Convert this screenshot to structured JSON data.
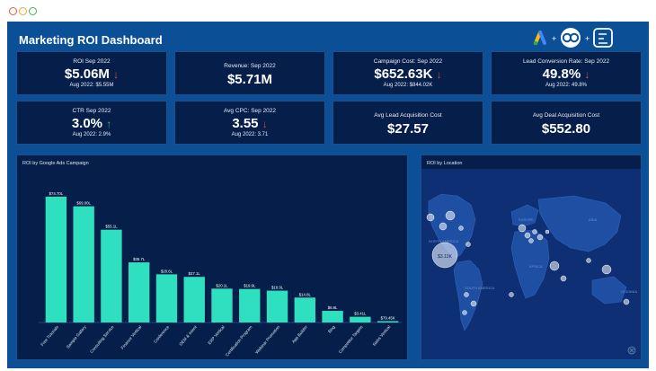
{
  "title": "Marketing ROI Dashboard",
  "window_controls": [
    "close",
    "minimize",
    "maximize"
  ],
  "logo_icons": [
    "google-ads-icon",
    "plus",
    "creative-cloud-icon",
    "plus",
    "zoho-analytics-icon"
  ],
  "kpis": [
    {
      "label": "ROI Sep 2022",
      "value": "$5.06M",
      "trend": "down",
      "sub": "Aug 2022: $5.55M"
    },
    {
      "label": "Revenue: Sep 2022",
      "value": "$5.71M",
      "trend": "",
      "sub": ""
    },
    {
      "label": "Campaign Cost: Sep 2022",
      "value": "$652.63K",
      "trend": "down",
      "sub": "Aug 2022: $844.02K"
    },
    {
      "label": "Lead Conversion Rate: Sep 2022",
      "value": "49.8%",
      "trend": "down",
      "sub": "Aug 2022: 49.8%"
    },
    {
      "label": "CTR Sep 2022",
      "value": "3.0%",
      "trend": "up",
      "sub": "Aug 2022: 2.9%"
    },
    {
      "label": "Avg CPC: Sep 2022",
      "value": "3.55",
      "trend": "down",
      "sub": "Aug 2022: 3.71"
    },
    {
      "label": "Avg Lead Acquisition Cost",
      "value": "$27.57",
      "trend": "",
      "sub": ""
    },
    {
      "label": "Avg Deal Acquisition Cost",
      "value": "$552.80",
      "trend": "",
      "sub": ""
    }
  ],
  "chart_panel_title": "ROI by Google Ads Campaign",
  "map_panel_title": "ROI by Location",
  "map_labels": [
    "NORTH AMERICA",
    "EUROPE",
    "ASIA",
    "AFRICA",
    "SOUTH AMERICA",
    "OCEANIA"
  ],
  "map_bubble_label": "$3.13K",
  "chart_data": {
    "type": "bar",
    "categories": [
      "Free Tutorials",
      "Sample Gallery",
      "Consulting Service",
      "Finance Vertical",
      "Conference",
      "OEM & Intent",
      "ERP Vertical",
      "Certification Program",
      "Webinar Promotion",
      "App Builder",
      "Blog",
      "Competitor Targets",
      "Sales Vertical"
    ],
    "values": [
      74.7,
      69.0,
      55.1,
      35.7,
      28.6,
      27.1,
      20.1,
      19.9,
      18.9,
      14.8,
      6.9,
      3.4,
      0.079
    ],
    "data_labels": [
      "$74.70L",
      "$69.00L",
      "$55.1L",
      "$35.7L",
      "$28.6L",
      "$27.1L",
      "$20.1L",
      "$19.9L",
      "$18.9L",
      "$14.8L",
      "$6.9L",
      "$3.41L",
      "$79.45K"
    ],
    "ylim": [
      0,
      80
    ],
    "colors": {
      "bar": "#2fe0c0",
      "background": "#061f4a",
      "dashboard": "#0b4f97"
    }
  }
}
